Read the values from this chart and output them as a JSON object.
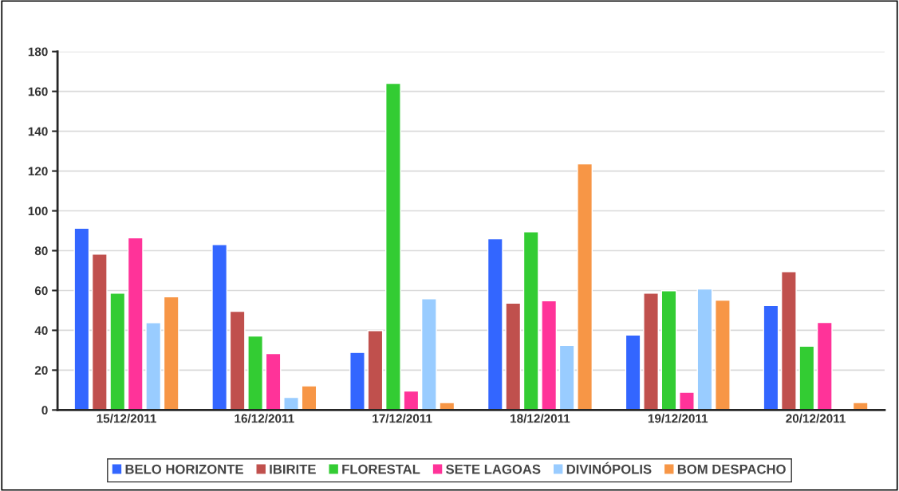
{
  "chart_data": {
    "type": "bar",
    "categories": [
      "15/12/2011",
      "16/12/2011",
      "17/12/2011",
      "18/12/2011",
      "19/12/2011",
      "20/12/2011"
    ],
    "series": [
      {
        "name": "BELO HORIZONTE",
        "color": "#3366ff",
        "values": [
          91.3,
          83.1,
          28.9,
          86,
          37.6,
          52.5
        ]
      },
      {
        "name": "IBIRITE",
        "color": "#c0504d",
        "values": [
          78.3,
          49.6,
          39.9,
          53.7,
          58.7,
          69.5
        ]
      },
      {
        "name": "FLORESTAL",
        "color": "#33cc33",
        "values": [
          58.7,
          37.1,
          164,
          89.5,
          59.9,
          32
        ]
      },
      {
        "name": "SETE LAGOAS",
        "color": "#ff3399",
        "values": [
          86.5,
          28.3,
          9.5,
          54.9,
          8.9,
          44
        ]
      },
      {
        "name": "DIVINÓPOLIS",
        "color": "#99ccff",
        "values": [
          43.9,
          6.3,
          55.9,
          32.4,
          60.8,
          null
        ]
      },
      {
        "name": "BOM DESPACHO",
        "color": "#f79646",
        "values": [
          56.9,
          12.1,
          3.7,
          123.6,
          55.2,
          3.7
        ]
      }
    ],
    "ylim": [
      0,
      180
    ],
    "yticks": [
      0,
      20,
      40,
      60,
      80,
      100,
      120,
      140,
      160,
      180
    ],
    "grid": "y",
    "legend": "bottom"
  }
}
